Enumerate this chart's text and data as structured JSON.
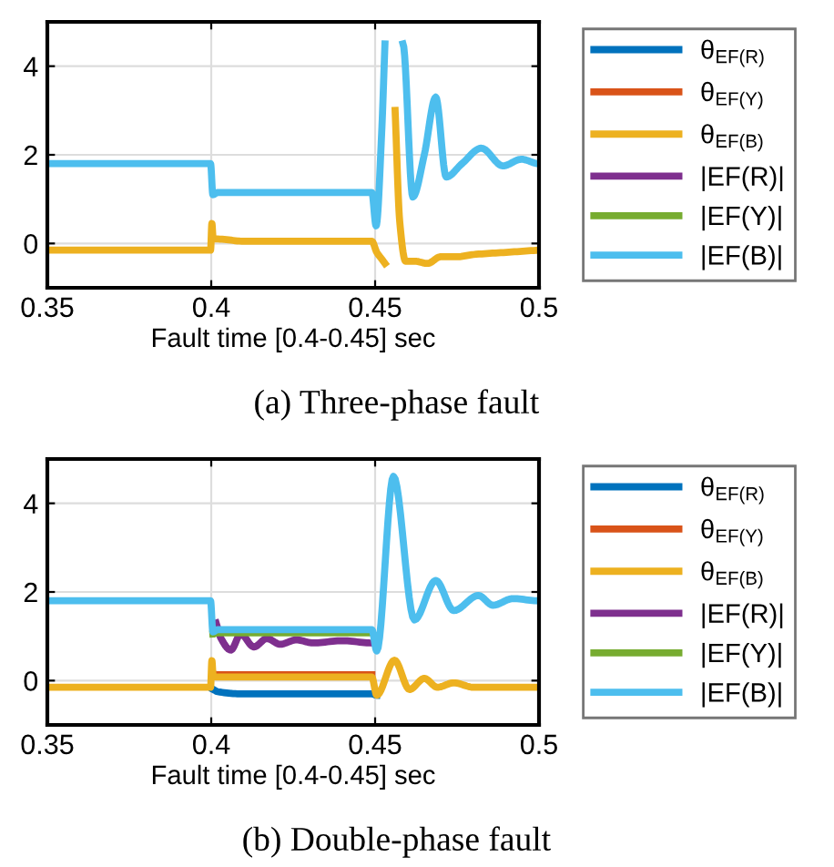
{
  "chart_data": [
    {
      "type": "line",
      "title": "(a) Three-phase fault",
      "xlabel": "Fault time [0.4-0.45] sec",
      "xlim": [
        0.35,
        0.5
      ],
      "xticks": [
        0.35,
        0.4,
        0.45,
        0.5
      ],
      "ylim": [
        -1,
        5
      ],
      "yticks": [
        0,
        2,
        4
      ],
      "grid": true,
      "legend": "right",
      "series": [
        {
          "name": "θ$_{EF(R)}$",
          "color": "#0072bd"
        },
        {
          "name": "θ$_{EF(Y)}$",
          "color": "#d95319"
        },
        {
          "name": "θ$_{EF(B)}$",
          "color": "#edb120",
          "x": [
            0.35,
            0.3998,
            0.4002,
            0.4006,
            0.402,
            0.41,
            0.42,
            0.43,
            0.44,
            0.449,
            0.4505,
            0.452,
            0.453,
            0.4545,
            0.4561,
            0.4575,
            0.4593,
            0.462,
            0.466,
            0.47,
            0.475,
            0.48,
            0.49,
            0.5
          ],
          "values": [
            -0.15,
            -0.15,
            0.45,
            0.1,
            0.1,
            0.05,
            0.05,
            0.05,
            0.05,
            0.05,
            -0.2,
            -0.35,
            -0.45,
            null,
            3.0,
            0.5,
            -0.4,
            -0.4,
            -0.45,
            -0.3,
            -0.3,
            -0.25,
            -0.2,
            -0.15
          ]
        },
        {
          "name": "|EF(R)|",
          "color": "#7e2f8e"
        },
        {
          "name": "|EF(Y)|",
          "color": "#77ac30"
        },
        {
          "name": "|EF(B)|",
          "color": "#4dbeee",
          "x": [
            0.35,
            0.3998,
            0.4005,
            0.402,
            0.41,
            0.42,
            0.43,
            0.44,
            0.449,
            0.4503,
            0.452,
            0.453,
            0.456,
            0.4585,
            0.4615,
            0.465,
            0.4685,
            0.4717,
            0.4765,
            0.4824,
            0.489,
            0.4946,
            0.5
          ],
          "values": [
            1.8,
            1.8,
            1.1,
            1.15,
            1.15,
            1.15,
            1.15,
            1.15,
            1.15,
            0.4,
            2.5,
            4.5,
            null,
            4.5,
            1.05,
            2.0,
            3.3,
            1.5,
            1.8,
            2.15,
            1.75,
            1.9,
            1.8
          ]
        }
      ]
    },
    {
      "type": "line",
      "title": "(b) Double-phase fault",
      "xlabel": "Fault time [0.4-0.45] sec",
      "xlim": [
        0.35,
        0.5
      ],
      "xticks": [
        0.35,
        0.4,
        0.45,
        0.5
      ],
      "ylim": [
        -1,
        5
      ],
      "yticks": [
        0,
        2,
        4
      ],
      "grid": true,
      "legend": "right",
      "series": [
        {
          "name": "θ$_{EF(R)}$",
          "color": "#0072bd",
          "x": [
            0.4006,
            0.402,
            0.41,
            0.42,
            0.43,
            0.44,
            0.449,
            0.4505
          ],
          "values": [
            -0.2,
            -0.25,
            -0.3,
            -0.3,
            -0.3,
            -0.3,
            -0.3,
            -0.33
          ]
        },
        {
          "name": "θ$_{EF(Y)}$",
          "color": "#d95319",
          "x": [
            0.4006,
            0.402,
            0.41,
            0.42,
            0.43,
            0.44,
            0.449
          ],
          "values": [
            0.15,
            0.13,
            0.13,
            0.13,
            0.13,
            0.13,
            0.13
          ]
        },
        {
          "name": "θ$_{EF(B)}$",
          "color": "#edb120",
          "x": [
            0.35,
            0.3998,
            0.4002,
            0.4006,
            0.402,
            0.41,
            0.42,
            0.43,
            0.44,
            0.449,
            0.4505,
            0.4559,
            0.4605,
            0.465,
            0.469,
            0.474,
            0.48,
            0.49,
            0.5
          ],
          "values": [
            -0.15,
            -0.15,
            0.45,
            0.1,
            0.08,
            0.08,
            0.08,
            0.08,
            0.08,
            0.08,
            -0.33,
            0.46,
            -0.2,
            0.05,
            -0.15,
            -0.05,
            -0.15,
            -0.15,
            -0.15
          ]
        },
        {
          "name": "|EF(R)|",
          "color": "#7e2f8e",
          "x": [
            0.4015,
            0.403,
            0.406,
            0.409,
            0.413,
            0.417,
            0.421,
            0.426,
            0.431,
            0.44,
            0.449
          ],
          "values": [
            1.3,
            0.95,
            0.69,
            1.05,
            0.76,
            0.95,
            0.82,
            0.92,
            0.85,
            0.9,
            0.85
          ]
        },
        {
          "name": "|EF(Y)|",
          "color": "#77ac30",
          "x": [
            0.4005,
            0.402,
            0.41,
            0.42,
            0.43,
            0.44,
            0.449
          ],
          "values": [
            1.05,
            1.08,
            1.08,
            1.08,
            1.08,
            1.08,
            1.08
          ]
        },
        {
          "name": "|EF(B)|",
          "color": "#4dbeee",
          "x": [
            0.35,
            0.3998,
            0.4005,
            0.402,
            0.41,
            0.42,
            0.43,
            0.44,
            0.449,
            0.4505,
            0.4556,
            0.462,
            0.4685,
            0.474,
            0.4815,
            0.486,
            0.492,
            0.5
          ],
          "values": [
            1.8,
            1.8,
            1.1,
            1.15,
            1.15,
            1.15,
            1.15,
            1.15,
            1.15,
            0.67,
            4.61,
            1.37,
            2.26,
            1.58,
            1.92,
            1.7,
            1.85,
            1.8
          ]
        }
      ]
    }
  ]
}
